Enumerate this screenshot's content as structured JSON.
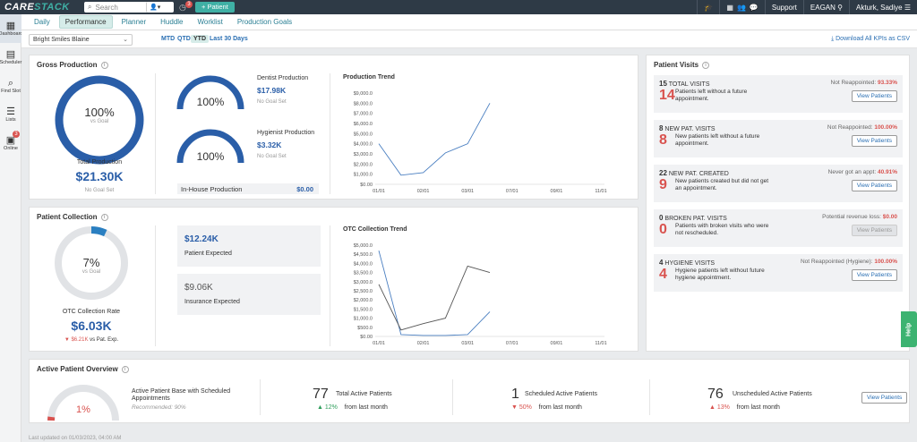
{
  "app": {
    "logo_left": "CARE",
    "logo_right": "STACK"
  },
  "topbar": {
    "search_placeholder": "Search",
    "notification_count": "3",
    "add_patient": "+ Patient",
    "support": "Support",
    "location": "EAGAN",
    "user": "Akturk, Sadiye"
  },
  "leftnav": [
    {
      "label": "Dashboard",
      "icon": "dashboard-icon",
      "glyph": "▦"
    },
    {
      "label": "Scheduler",
      "icon": "calendar-icon",
      "glyph": "▤"
    },
    {
      "label": "Find Slot",
      "icon": "search-icon",
      "glyph": "⌕"
    },
    {
      "label": "Lists",
      "icon": "list-icon",
      "glyph": "☰"
    },
    {
      "label": "Online",
      "icon": "online-icon",
      "glyph": "▣",
      "badge": "3"
    }
  ],
  "tabs": [
    "Daily",
    "Performance",
    "Planner",
    "Huddle",
    "Worklist",
    "Production Goals"
  ],
  "filter": {
    "location": "Bright Smiles Blaine",
    "periods": [
      "MTD",
      "QTD",
      "YTD",
      "Last 30 Days"
    ],
    "active_period": "YTD",
    "download": "Download All KPIs as CSV"
  },
  "gross": {
    "title": "Gross Production",
    "pct": "100%",
    "vs_goal": "vs Goal",
    "total_label": "Total Production",
    "total_value": "$21.30K",
    "no_goal": "No Goal Set",
    "dentist": {
      "pct": "100%",
      "label": "Dentist Production",
      "value": "$17.98K",
      "goal": "No Goal Set"
    },
    "hygienist": {
      "pct": "100%",
      "label": "Hygienist Production",
      "value": "$3.32K",
      "goal": "No Goal Set"
    },
    "inhouse_label": "In-House Production",
    "inhouse_value": "$0.00",
    "trend_title": "Production Trend"
  },
  "collection": {
    "title": "Patient Collection",
    "pct": "7%",
    "vs_goal": "vs Goal",
    "rate_label": "OTC Collection Rate",
    "rate_value": "$6.03K",
    "change": "▼ $6.21K",
    "change_suffix": "vs Pat. Exp.",
    "patient_expected_value": "$12.24K",
    "patient_expected_label": "Patient Expected",
    "insurance_expected_value": "$9.06K",
    "insurance_expected_label": "Insurance Expected",
    "trend_title": "OTC Collection Trend"
  },
  "visits": {
    "title": "Patient Visits",
    "button": "View Patients",
    "items": [
      {
        "count": "15",
        "type": "TOTAL VISITS",
        "big": "14",
        "desc": "Patients left without a future appointment.",
        "right_label": "Not Reappointed:",
        "right_value": "93.33%",
        "disabled": false
      },
      {
        "count": "8",
        "type": "NEW PAT. VISITS",
        "big": "8",
        "desc": "New patients left without a future appointment.",
        "right_label": "Not Reappointed:",
        "right_value": "100.00%",
        "disabled": false
      },
      {
        "count": "22",
        "type": "NEW PAT. CREATED",
        "big": "9",
        "desc": "New patients created but did not get an appointment.",
        "right_label": "Never got an appt:",
        "right_value": "40.91%",
        "disabled": false
      },
      {
        "count": "0",
        "type": "BROKEN PAT. VISITS",
        "big": "0",
        "desc": "Patients with broken visits who were not rescheduled.",
        "right_label": "Potential revenue loss:",
        "right_value": "$0.00",
        "disabled": true
      },
      {
        "count": "4",
        "type": "HYGIENE VISITS",
        "big": "4",
        "desc": "Hygiene patients left without future hygiene appointment.",
        "right_label": "Not Reappointed (Hygiene):",
        "right_value": "100.00%",
        "disabled": false
      }
    ]
  },
  "active": {
    "title": "Active Patient Overview",
    "pct": "1%",
    "base_label": "Active Patient Base with Scheduled Appointments",
    "recommended": "Recommended: 90%",
    "total": {
      "num": "77",
      "label": "Total Active Patients",
      "change": "▲ 12%",
      "suffix": "from last month"
    },
    "scheduled": {
      "num": "1",
      "label": "Scheduled Active Patients",
      "change": "▼ 50%",
      "suffix": "from last month"
    },
    "unscheduled": {
      "num": "76",
      "label": "Unscheduled Active Patients",
      "change": "▲ 13%",
      "suffix": "from last month"
    },
    "button": "View Patients"
  },
  "help": "Help",
  "footer": "Last updated on 01/03/2023, 04:00 AM",
  "chart_data": [
    {
      "type": "line",
      "title": "Production Trend",
      "categories": [
        "01/01",
        "02/01",
        "03/01",
        "07/01",
        "09/01",
        "11/01"
      ],
      "x": [
        "01/01",
        "01/15",
        "02/01",
        "02/15",
        "03/01",
        "03/15"
      ],
      "ylim": [
        0,
        9000
      ],
      "yticks": [
        "$9,000.0",
        "$8,000.0",
        "$7,000.0",
        "$6,000.0",
        "$5,000.0",
        "$4,000.0",
        "$3,000.0",
        "$2,000.0",
        "$1,000.0",
        "$0.00"
      ],
      "series": [
        {
          "color": "#4a7fc1",
          "values": [
            4000,
            900,
            1150,
            3100,
            4000,
            8000
          ]
        }
      ]
    },
    {
      "type": "line",
      "title": "OTC Collection Trend",
      "categories": [
        "01/01",
        "02/01",
        "03/01",
        "07/01",
        "09/01",
        "11/01"
      ],
      "x": [
        "01/01",
        "01/15",
        "02/01",
        "02/15",
        "03/01",
        "03/15"
      ],
      "ylim": [
        0,
        5000
      ],
      "yticks": [
        "$5,000.0",
        "$4,500.0",
        "$4,000.0",
        "$3,500.0",
        "$3,000.0",
        "$2,500.0",
        "$2,000.0",
        "$1,500.0",
        "$1,000.0",
        "$500.0",
        "$0.00"
      ],
      "series": [
        {
          "color": "#4a7fc1",
          "values": [
            4700,
            100,
            50,
            50,
            100,
            1350
          ]
        },
        {
          "color": "#555555",
          "values": [
            2850,
            350,
            700,
            1000,
            3850,
            3500
          ]
        }
      ]
    }
  ]
}
